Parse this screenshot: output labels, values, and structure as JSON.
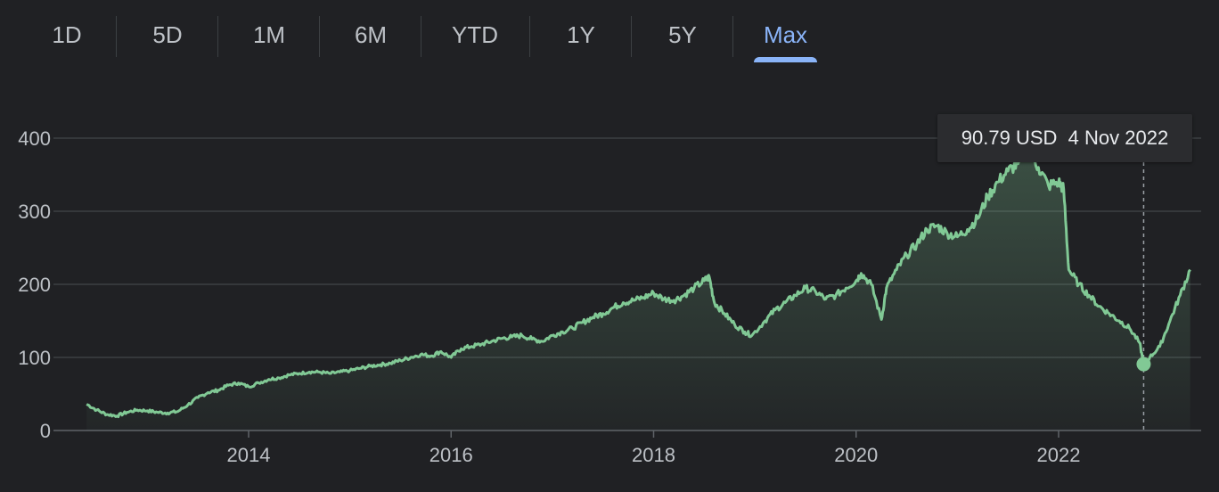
{
  "range_tabs": [
    {
      "label": "1D"
    },
    {
      "label": "5D"
    },
    {
      "label": "1M"
    },
    {
      "label": "6M"
    },
    {
      "label": "YTD"
    },
    {
      "label": "1Y"
    },
    {
      "label": "5Y"
    },
    {
      "label": "Max",
      "active": true
    }
  ],
  "tooltip": {
    "price": "90.79 USD",
    "date": "4 Nov 2022"
  },
  "colors": {
    "background": "#202124",
    "line": "#81c995",
    "grid": "#3c4043",
    "accent": "#8ab4f8"
  },
  "chart_data": {
    "type": "area",
    "title": "",
    "xlabel": "",
    "ylabel": "",
    "x_ticks": [
      "2014",
      "2016",
      "2018",
      "2020",
      "2022"
    ],
    "y_ticks": [
      0,
      100,
      200,
      300,
      400
    ],
    "ylim": [
      0,
      400
    ],
    "xlim": [
      2012.4,
      2023.3
    ],
    "grid": true,
    "highlight": {
      "x": 2022.84,
      "y": 90.79
    },
    "series": [
      {
        "x": [
          2012.4,
          2012.5,
          2012.6,
          2012.7,
          2012.8,
          2012.9,
          2013.0,
          2013.1,
          2013.2,
          2013.3,
          2013.4,
          2013.5,
          2013.6,
          2013.7,
          2013.8,
          2013.9,
          2014.0,
          2014.1,
          2014.2,
          2014.3,
          2014.4,
          2014.5,
          2014.6,
          2014.7,
          2014.8,
          2014.9,
          2015.0,
          2015.1,
          2015.2,
          2015.3,
          2015.4,
          2015.5,
          2015.6,
          2015.7,
          2015.8,
          2015.9,
          2016.0,
          2016.1,
          2016.2,
          2016.3,
          2016.4,
          2016.5,
          2016.6,
          2016.7,
          2016.8,
          2016.9,
          2017.0,
          2017.1,
          2017.2,
          2017.3,
          2017.4,
          2017.5,
          2017.6,
          2017.7,
          2017.8,
          2017.9,
          2018.0,
          2018.1,
          2018.2,
          2018.3,
          2018.4,
          2018.5,
          2018.55,
          2018.6,
          2018.7,
          2018.8,
          2018.9,
          2018.97,
          2019.1,
          2019.2,
          2019.3,
          2019.4,
          2019.5,
          2019.6,
          2019.7,
          2019.8,
          2019.9,
          2020.0,
          2020.05,
          2020.15,
          2020.25,
          2020.3,
          2020.4,
          2020.5,
          2020.6,
          2020.7,
          2020.8,
          2020.9,
          2021.0,
          2021.1,
          2021.2,
          2021.3,
          2021.4,
          2021.5,
          2021.6,
          2021.7,
          2021.8,
          2021.9,
          2022.0,
          2022.05,
          2022.1,
          2022.2,
          2022.3,
          2022.4,
          2022.5,
          2022.6,
          2022.7,
          2022.8,
          2022.84,
          2022.9,
          2023.0,
          2023.1,
          2023.2,
          2023.3
        ],
        "values": [
          36,
          28,
          22,
          20,
          25,
          28,
          27,
          25,
          24,
          26,
          35,
          45,
          52,
          55,
          62,
          65,
          60,
          65,
          70,
          72,
          76,
          78,
          80,
          80,
          78,
          80,
          82,
          85,
          88,
          90,
          92,
          96,
          100,
          104,
          102,
          108,
          100,
          112,
          115,
          118,
          122,
          126,
          128,
          130,
          125,
          122,
          130,
          135,
          140,
          148,
          155,
          160,
          168,
          175,
          178,
          182,
          188,
          180,
          178,
          185,
          195,
          205,
          210,
          175,
          160,
          145,
          135,
          130,
          150,
          165,
          175,
          185,
          195,
          190,
          180,
          185,
          195,
          205,
          215,
          200,
          152,
          195,
          220,
          240,
          255,
          275,
          280,
          270,
          265,
          275,
          290,
          320,
          340,
          355,
          365,
          385,
          360,
          335,
          340,
          330,
          220,
          200,
          185,
          170,
          160,
          150,
          140,
          120,
          90.79,
          100,
          115,
          150,
          185,
          220
        ]
      }
    ]
  }
}
